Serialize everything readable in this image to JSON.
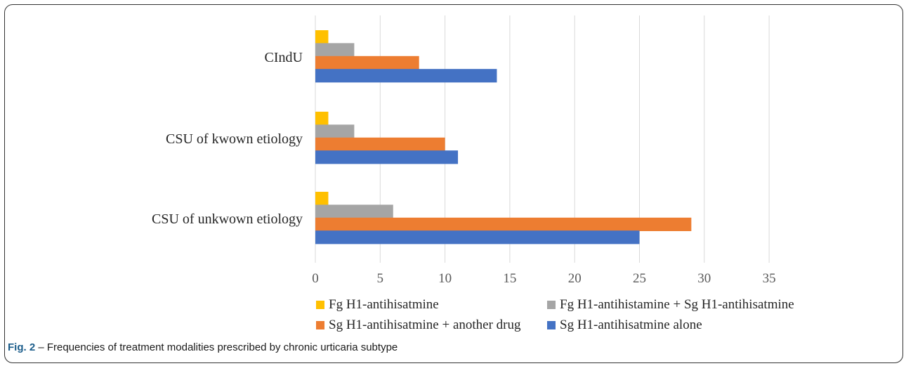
{
  "chart_data": {
    "type": "bar",
    "orientation": "horizontal",
    "categories": [
      "CIndU",
      "CSU of kwown etiology",
      "CSU of unkwown etiology"
    ],
    "series": [
      {
        "name": "Fg H1-antihisatmine",
        "color": "#FFC000",
        "values": [
          1,
          1,
          1
        ]
      },
      {
        "name": "Fg H1-antihistamine + Sg H1-antihisatmine",
        "color": "#A5A5A5",
        "values": [
          3,
          3,
          6
        ]
      },
      {
        "name": "Sg H1-antihisatmine + another drug",
        "color": "#ED7D31",
        "values": [
          8,
          10,
          29
        ]
      },
      {
        "name": "Sg H1-antihisatmine alone",
        "color": "#4472C4",
        "values": [
          14,
          11,
          25
        ]
      }
    ],
    "xlim": [
      0,
      35
    ],
    "xticks": [
      0,
      5,
      10,
      15,
      20,
      25,
      30,
      35
    ],
    "grid": "vertical",
    "legend_position": "bottom",
    "title": "",
    "xlabel": "",
    "ylabel": ""
  },
  "caption": {
    "label": "Fig. 2",
    "text": " – Frequencies of treatment modalities prescribed by chronic urticaria subtype"
  }
}
